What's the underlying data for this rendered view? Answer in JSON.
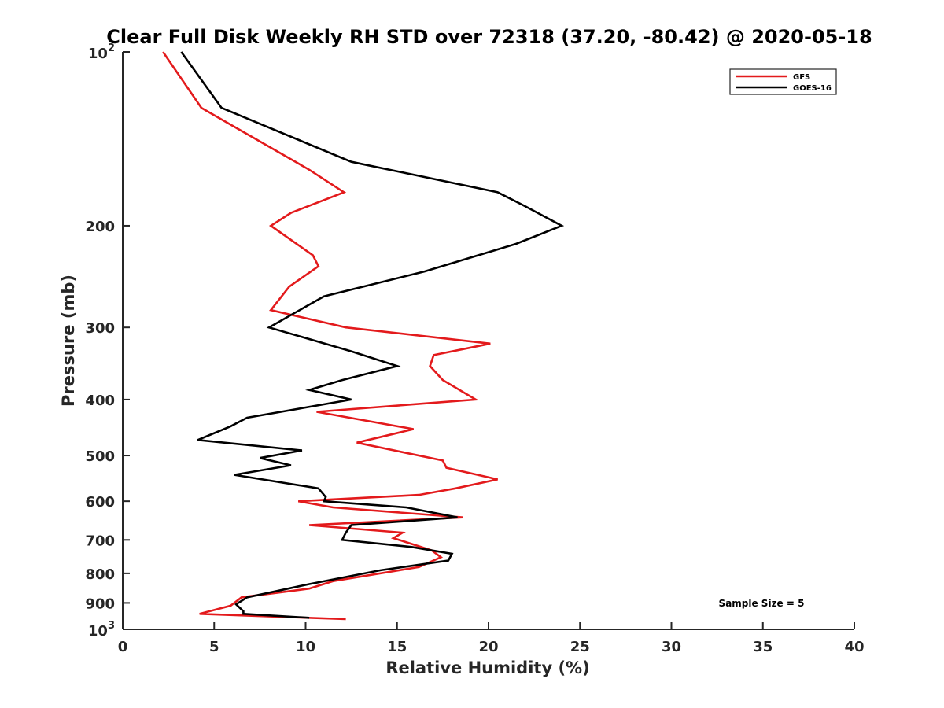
{
  "chart_data": {
    "type": "line",
    "title": "Clear Full Disk Weekly RH STD over 72318 (37.20, -80.42) @ 2020-05-18",
    "xlabel": "Relative Humidity (%)",
    "ylabel": "Pressure (mb)",
    "xlim": [
      0,
      40
    ],
    "ylim": [
      100,
      1000
    ],
    "yscale": "log",
    "y_reversed": true,
    "x_ticks": [
      "0",
      "5",
      "10",
      "15",
      "20",
      "25",
      "30",
      "35",
      "40"
    ],
    "y_ticks": [
      {
        "value": 100,
        "base": "10",
        "exp": "2"
      },
      {
        "value": 200,
        "label": "200"
      },
      {
        "value": 300,
        "label": "300"
      },
      {
        "value": 400,
        "label": "400"
      },
      {
        "value": 500,
        "label": "500"
      },
      {
        "value": 600,
        "label": "600"
      },
      {
        "value": 700,
        "label": "700"
      },
      {
        "value": 800,
        "label": "800"
      },
      {
        "value": 900,
        "label": "900"
      },
      {
        "value": 1000,
        "base": "10",
        "exp": "3"
      }
    ],
    "grid": false,
    "legend_position": "top-right",
    "annotation": "Sample Size = 5",
    "series": [
      {
        "name": "GFS",
        "color": "#e31a1c",
        "points": [
          [
            2.2,
            100
          ],
          [
            4.3,
            125
          ],
          [
            10.2,
            160
          ],
          [
            12.1,
            175
          ],
          [
            9.2,
            190
          ],
          [
            8.1,
            200
          ],
          [
            10.4,
            225
          ],
          [
            10.7,
            235
          ],
          [
            9.1,
            255
          ],
          [
            8.1,
            280
          ],
          [
            12.2,
            300
          ],
          [
            20.1,
            320
          ],
          [
            17.0,
            335
          ],
          [
            16.8,
            350
          ],
          [
            17.5,
            370
          ],
          [
            19.3,
            400
          ],
          [
            10.6,
            420
          ],
          [
            15.9,
            450
          ],
          [
            12.8,
            475
          ],
          [
            17.5,
            510
          ],
          [
            17.7,
            525
          ],
          [
            20.5,
            550
          ],
          [
            18.2,
            570
          ],
          [
            16.2,
            585
          ],
          [
            9.6,
            600
          ],
          [
            11.5,
            615
          ],
          [
            18.6,
            640
          ],
          [
            10.2,
            660
          ],
          [
            15.3,
            680
          ],
          [
            14.8,
            695
          ],
          [
            16.9,
            730
          ],
          [
            17.4,
            750
          ],
          [
            16.2,
            780
          ],
          [
            11.5,
            825
          ],
          [
            10.2,
            850
          ],
          [
            6.5,
            880
          ],
          [
            5.9,
            910
          ],
          [
            4.2,
            940
          ],
          [
            12.2,
            960
          ]
        ]
      },
      {
        "name": "GOES-16",
        "color": "#000000",
        "points": [
          [
            3.2,
            100
          ],
          [
            5.4,
            125
          ],
          [
            12.5,
            155
          ],
          [
            20.5,
            175
          ],
          [
            22.0,
            185
          ],
          [
            24.0,
            200
          ],
          [
            21.5,
            215
          ],
          [
            16.5,
            240
          ],
          [
            11.0,
            265
          ],
          [
            8.0,
            300
          ],
          [
            12.5,
            330
          ],
          [
            15.0,
            350
          ],
          [
            12.0,
            370
          ],
          [
            10.2,
            385
          ],
          [
            12.5,
            400
          ],
          [
            6.8,
            430
          ],
          [
            5.9,
            445
          ],
          [
            4.1,
            470
          ],
          [
            9.8,
            490
          ],
          [
            7.5,
            505
          ],
          [
            9.2,
            520
          ],
          [
            6.1,
            540
          ],
          [
            10.7,
            570
          ],
          [
            11.1,
            590
          ],
          [
            11.0,
            600
          ],
          [
            15.5,
            615
          ],
          [
            18.3,
            640
          ],
          [
            12.5,
            660
          ],
          [
            12.2,
            680
          ],
          [
            12.0,
            700
          ],
          [
            15.8,
            720
          ],
          [
            18.0,
            740
          ],
          [
            17.8,
            760
          ],
          [
            14.1,
            790
          ],
          [
            10.2,
            835
          ],
          [
            6.8,
            880
          ],
          [
            6.2,
            905
          ],
          [
            6.6,
            930
          ],
          [
            6.6,
            940
          ],
          [
            10.2,
            955
          ]
        ]
      }
    ]
  }
}
